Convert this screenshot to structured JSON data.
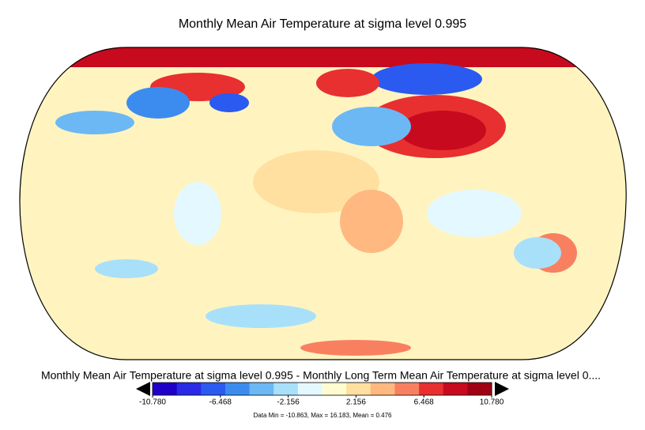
{
  "chart_data": {
    "type": "choropleth-map",
    "title": "Monthly Mean Air Temperature at sigma level 0.995",
    "subtitle": "Monthly Mean Air Temperature at sigma level 0.995 - Monthly Long Term Mean Air Temperature at sigma level 0....",
    "stats": "Data Min = -10.863, Max = 16.183, Mean = 0.476",
    "colorbar": {
      "lim": [
        -10.78,
        10.78
      ],
      "ticks": [
        {
          "value": -10.78,
          "label": "-10.780"
        },
        {
          "value": -6.468,
          "label": "-6.468"
        },
        {
          "value": -2.156,
          "label": "-2.156"
        },
        {
          "value": 2.156,
          "label": "2.156"
        },
        {
          "value": 6.468,
          "label": "6.468"
        },
        {
          "value": 10.78,
          "label": "10.780"
        }
      ],
      "colors": [
        "#1e00c8",
        "#2a2ae6",
        "#2a5af0",
        "#3c8cf0",
        "#6cb8f4",
        "#a8e0fa",
        "#e4f8ff",
        "#fffcd0",
        "#ffe0a0",
        "#ffb880",
        "#f88060",
        "#e83030",
        "#c80a1e",
        "#a00014"
      ]
    }
  }
}
